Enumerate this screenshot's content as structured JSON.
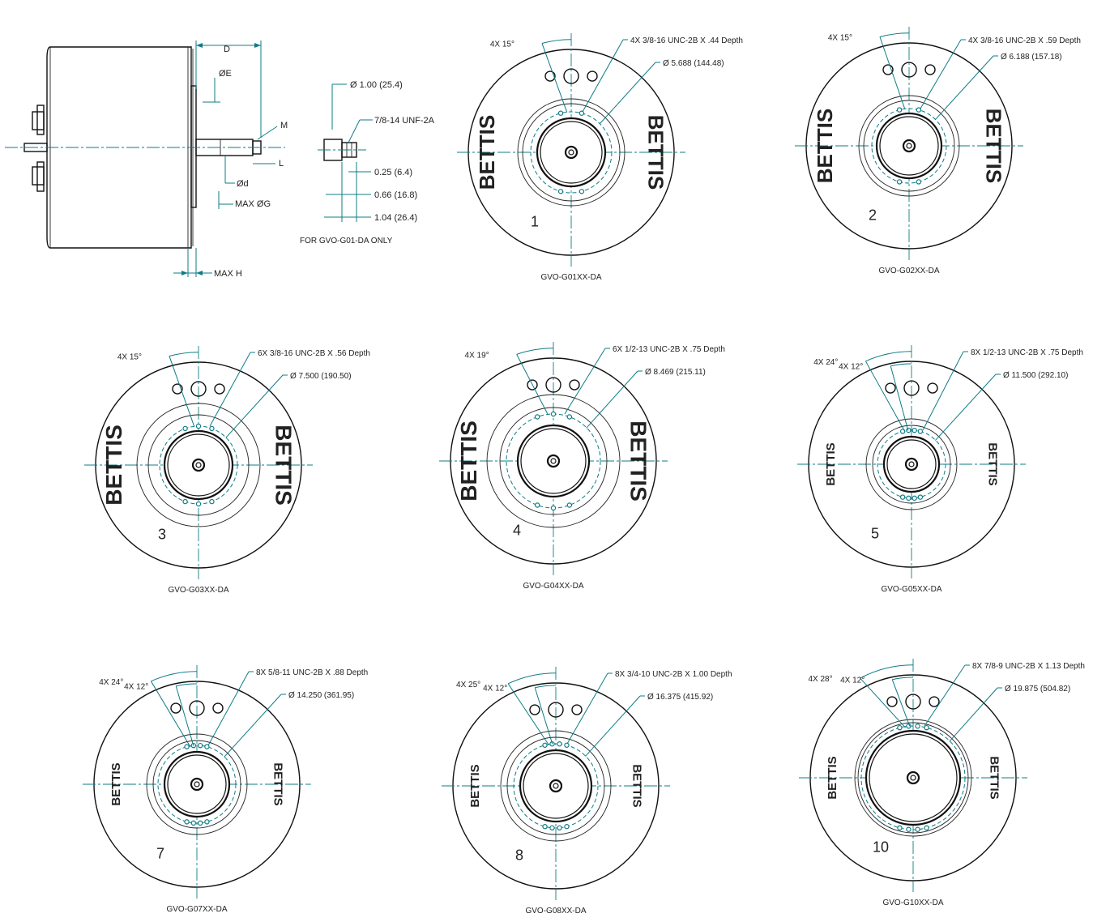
{
  "side_view": {
    "labels": {
      "D": "D",
      "E": "ØE",
      "M": "M",
      "L": "L",
      "d": "Ød",
      "G": "MAX ØG",
      "H": "MAX H"
    }
  },
  "shaft_detail": {
    "dia": "Ø 1.00 (25.4)",
    "thread": "7/8-14 UNF-2A",
    "dim1": "0.25 (6.4)",
    "dim2": "0.66 (16.8)",
    "dim3": "1.04 (26.4)",
    "note": "FOR GVO-G01-DA ONLY"
  },
  "brand": "BETTIS",
  "views": [
    {
      "caption": "GVO-G01XX-DA",
      "angles": [
        "4X 15°"
      ],
      "holes": "4X 3/8-16 UNC-2B X .44 Depth",
      "pcd": "Ø 5.688 (144.48)",
      "number": "1"
    },
    {
      "caption": "GVO-G02XX-DA",
      "angles": [
        "4X 15°"
      ],
      "holes": "4X 3/8-16 UNC-2B X .59 Depth",
      "pcd": "Ø 6.188 (157.18)",
      "number": "2"
    },
    {
      "caption": "GVO-G03XX-DA",
      "angles": [
        "4X 15°"
      ],
      "holes": "6X 3/8-16 UNC-2B X .56 Depth",
      "pcd": "Ø 7.500 (190.50)",
      "number": "3"
    },
    {
      "caption": "GVO-G04XX-DA",
      "angles": [
        "4X 19°"
      ],
      "holes": "6X 1/2-13 UNC-2B X .75 Depth",
      "pcd": "Ø 8.469 (215.11)",
      "number": "4"
    },
    {
      "caption": "GVO-G05XX-DA",
      "angles": [
        "4X 24°",
        "4X 12°"
      ],
      "holes": "8X 1/2-13 UNC-2B X .75 Depth",
      "pcd": "Ø 11.500 (292.10)",
      "number": "5"
    },
    {
      "caption": "GVO-G07XX-DA",
      "angles": [
        "4X 24°",
        "4X 12°"
      ],
      "holes": "8X 5/8-11 UNC-2B X .88 Depth",
      "pcd": "Ø 14.250 (361.95)",
      "number": "7"
    },
    {
      "caption": "GVO-G08XX-DA",
      "angles": [
        "4X 25°",
        "4X 12°"
      ],
      "holes": "8X 3/4-10 UNC-2B X 1.00 Depth",
      "pcd": "Ø 16.375 (415.92)",
      "number": "8"
    },
    {
      "caption": "GVO-G10XX-DA",
      "angles": [
        "4X 28°",
        "4X 12°"
      ],
      "holes": "8X 7/8-9 UNC-2B X 1.13 Depth",
      "pcd": "Ø 19.875 (504.82)",
      "number": "10"
    }
  ]
}
